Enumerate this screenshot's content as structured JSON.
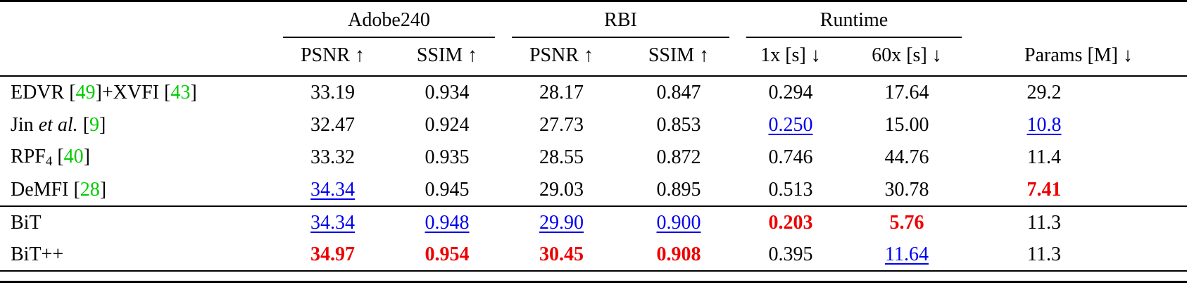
{
  "colors": {
    "cite": "#00cc00",
    "best": "#ee0000",
    "second": "#0000ee"
  },
  "table": {
    "groups": [
      {
        "label": "Adobe240"
      },
      {
        "label": "RBI"
      },
      {
        "label": "Runtime"
      }
    ],
    "sub_headers": [
      "PSNR ↑",
      "SSIM ↑",
      "PSNR ↑",
      "SSIM ↑",
      "1x [s] ↓",
      "60x [s] ↓",
      "Params [M] ↓"
    ],
    "rows": [
      {
        "method": [
          {
            "t": "EDVR ["
          },
          {
            "t": "49",
            "s": "cite"
          },
          {
            "t": "]+XVFI ["
          },
          {
            "t": "43",
            "s": "cite"
          },
          {
            "t": "]"
          }
        ],
        "cells": [
          {
            "t": "33.19",
            "s": "plain"
          },
          {
            "t": "0.934",
            "s": "plain"
          },
          {
            "t": "28.17",
            "s": "plain"
          },
          {
            "t": "0.847",
            "s": "plain"
          },
          {
            "t": "0.294",
            "s": "plain"
          },
          {
            "t": "17.64",
            "s": "plain"
          },
          {
            "t": "29.2",
            "s": "plain"
          }
        ]
      },
      {
        "method": [
          {
            "t": "Jin "
          },
          {
            "t": "et al.",
            "s": "italic"
          },
          {
            "t": " ["
          },
          {
            "t": "9",
            "s": "cite"
          },
          {
            "t": "]"
          }
        ],
        "cells": [
          {
            "t": "32.47",
            "s": "plain"
          },
          {
            "t": "0.924",
            "s": "plain"
          },
          {
            "t": "27.73",
            "s": "plain"
          },
          {
            "t": "0.853",
            "s": "plain"
          },
          {
            "t": "0.250",
            "s": "second"
          },
          {
            "t": "15.00",
            "s": "plain"
          },
          {
            "t": "10.8",
            "s": "second"
          }
        ]
      },
      {
        "method": [
          {
            "t": "RPF"
          },
          {
            "t": "4",
            "s": "sub"
          },
          {
            "t": " ["
          },
          {
            "t": "40",
            "s": "cite"
          },
          {
            "t": "]"
          }
        ],
        "cells": [
          {
            "t": "33.32",
            "s": "plain"
          },
          {
            "t": "0.935",
            "s": "plain"
          },
          {
            "t": "28.55",
            "s": "plain"
          },
          {
            "t": "0.872",
            "s": "plain"
          },
          {
            "t": "0.746",
            "s": "plain"
          },
          {
            "t": "44.76",
            "s": "plain"
          },
          {
            "t": "11.4",
            "s": "plain"
          }
        ]
      },
      {
        "method": [
          {
            "t": "DeMFI ["
          },
          {
            "t": "28",
            "s": "cite"
          },
          {
            "t": "]"
          }
        ],
        "cells": [
          {
            "t": "34.34",
            "s": "second"
          },
          {
            "t": "0.945",
            "s": "plain"
          },
          {
            "t": "29.03",
            "s": "plain"
          },
          {
            "t": "0.895",
            "s": "plain"
          },
          {
            "t": "0.513",
            "s": "plain"
          },
          {
            "t": "30.78",
            "s": "plain"
          },
          {
            "t": "7.41",
            "s": "best"
          }
        ]
      },
      {
        "method": [
          {
            "t": "BiT"
          }
        ],
        "cells": [
          {
            "t": "34.34",
            "s": "second"
          },
          {
            "t": "0.948",
            "s": "second"
          },
          {
            "t": "29.90",
            "s": "second"
          },
          {
            "t": "0.900",
            "s": "second"
          },
          {
            "t": "0.203",
            "s": "best"
          },
          {
            "t": "5.76",
            "s": "best"
          },
          {
            "t": "11.3",
            "s": "plain"
          }
        ]
      },
      {
        "method": [
          {
            "t": "BiT++"
          }
        ],
        "cells": [
          {
            "t": "34.97",
            "s": "best"
          },
          {
            "t": "0.954",
            "s": "best"
          },
          {
            "t": "30.45",
            "s": "best"
          },
          {
            "t": "0.908",
            "s": "best"
          },
          {
            "t": "0.395",
            "s": "plain"
          },
          {
            "t": "11.64",
            "s": "second"
          },
          {
            "t": "11.3",
            "s": "plain"
          }
        ]
      }
    ]
  }
}
